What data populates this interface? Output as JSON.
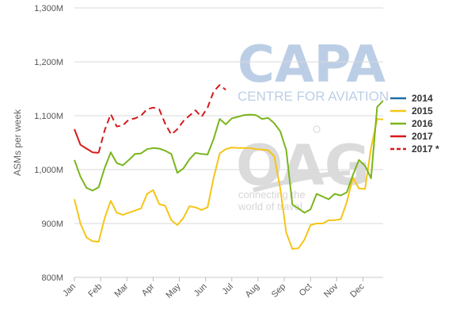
{
  "watermarks": {
    "capa_logo": "CAPA",
    "capa_tagline": "CENTRE FOR AVIATION",
    "oag_logo": "OAG",
    "oag_tagline_1": "connecting the",
    "oag_tagline_2": "world of travel"
  },
  "chart_data": {
    "type": "line",
    "title": "",
    "xlabel": "",
    "ylabel": "ASMs per week",
    "ylim": [
      800,
      1300
    ],
    "y_ticks": [
      "800M",
      "900M",
      "1,000M",
      "1,100M",
      "1,200M",
      "1,300M"
    ],
    "y_tick_values": [
      800,
      900,
      1000,
      1100,
      1200,
      1300
    ],
    "x_ticks": [
      "Jan",
      "Feb",
      "Mar",
      "Apr",
      "May",
      "Jun",
      "Jul",
      "Aug",
      "Sep",
      "Oct",
      "Nov",
      "Dec"
    ],
    "x_week_range": [
      1,
      52
    ],
    "legend_position": "right",
    "grid": "horizontal",
    "series": [
      {
        "name": "2014",
        "color": "#1f6ea8",
        "dash": "solid",
        "x": [],
        "values": []
      },
      {
        "name": "2015",
        "color": "#f5c518",
        "dash": "solid",
        "x": [
          1,
          2,
          3,
          4,
          5,
          6,
          7,
          8,
          9,
          10,
          11,
          12,
          13,
          14,
          15,
          16,
          17,
          18,
          19,
          20,
          21,
          22,
          23,
          24,
          25,
          26,
          27,
          28,
          29,
          30,
          31,
          32,
          33,
          34,
          35,
          36,
          37,
          38,
          39,
          40,
          41,
          42,
          43,
          44,
          45,
          46,
          47,
          48,
          49,
          50,
          51,
          52
        ],
        "values": [
          945,
          900,
          874,
          867,
          866,
          910,
          942,
          920,
          916,
          920,
          924,
          928,
          955,
          962,
          936,
          933,
          906,
          897,
          910,
          932,
          930,
          925,
          930,
          985,
          1030,
          1038,
          1041,
          1040,
          1040,
          1040,
          1038,
          1037,
          1036,
          1025,
          965,
          883,
          853,
          854,
          870,
          897,
          900,
          900,
          906,
          906,
          908,
          940,
          985,
          965,
          964,
          1040,
          1094,
          1093
        ]
      },
      {
        "name": "2016",
        "color": "#7ab51d",
        "dash": "solid",
        "x": [
          1,
          2,
          3,
          4,
          5,
          6,
          7,
          8,
          9,
          10,
          11,
          12,
          13,
          14,
          15,
          16,
          17,
          18,
          19,
          20,
          21,
          22,
          23,
          24,
          25,
          26,
          27,
          28,
          29,
          30,
          31,
          32,
          33,
          34,
          35,
          36,
          37,
          38,
          39,
          40,
          41,
          42,
          43,
          44,
          45,
          46,
          47,
          48,
          49,
          50,
          51,
          52
        ],
        "values": [
          1018,
          987,
          966,
          961,
          967,
          1003,
          1032,
          1012,
          1008,
          1018,
          1029,
          1030,
          1038,
          1040,
          1039,
          1035,
          1029,
          994,
          1002,
          1019,
          1031,
          1029,
          1028,
          1057,
          1094,
          1084,
          1095,
          1098,
          1101,
          1102,
          1101,
          1094,
          1096,
          1086,
          1071,
          1036,
          935,
          928,
          920,
          926,
          955,
          950,
          945,
          955,
          952,
          958,
          990,
          1018,
          1007,
          984,
          1116,
          1128
        ]
      },
      {
        "name": "2017",
        "color": "#d7191c",
        "dash": "solid",
        "x": [
          1,
          2,
          3,
          4,
          5
        ],
        "values": [
          1075,
          1046,
          1039,
          1032,
          1031
        ]
      },
      {
        "name": "2017 *",
        "color": "#d7191c",
        "dash": "dashed",
        "x": [
          5,
          6,
          7,
          8,
          9,
          10,
          11,
          12,
          13,
          14,
          15,
          16,
          17,
          18,
          19,
          20,
          21,
          22,
          23,
          24,
          25,
          26
        ],
        "values": [
          1031,
          1073,
          1103,
          1080,
          1082,
          1093,
          1095,
          1100,
          1112,
          1115,
          1112,
          1085,
          1065,
          1075,
          1090,
          1100,
          1110,
          1098,
          1115,
          1145,
          1157,
          1148
        ]
      }
    ]
  }
}
